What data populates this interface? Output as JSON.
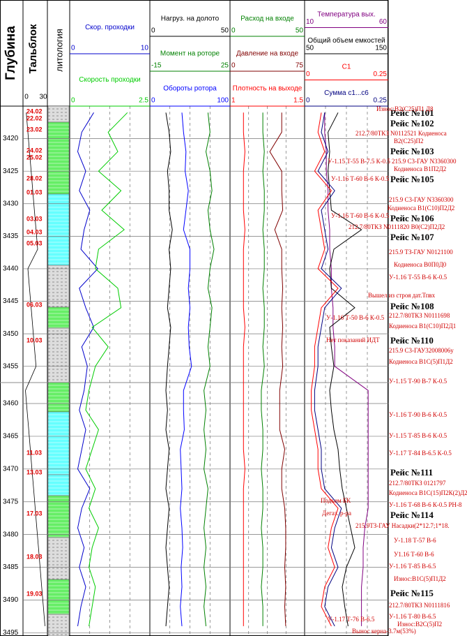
{
  "header": {
    "depth": "Глубина",
    "lithology": "литология"
  },
  "talblok": {
    "name": "Тальблок",
    "xlim": [
      0,
      30
    ],
    "color": "#000000",
    "values": [
      4,
      6,
      8,
      10,
      12,
      14,
      16,
      18,
      6,
      8,
      10,
      12,
      14,
      16,
      3,
      5,
      7,
      9,
      11,
      13,
      15,
      17,
      19,
      21,
      23,
      25,
      27
    ]
  },
  "depths": [
    3416,
    3419,
    3422,
    3425,
    3428,
    3431,
    3434,
    3437,
    3440,
    3443,
    3446,
    3449,
    3452,
    3455,
    3458,
    3461,
    3464,
    3467,
    3470,
    3473,
    3476,
    3479,
    3482,
    3485,
    3488,
    3491,
    3494
  ],
  "depth_panels": [
    {
      "ylim": [
        3415,
        3457.5
      ],
      "yticks": [
        3420,
        3425,
        3430,
        3435,
        3440,
        3445,
        3450,
        3455
      ]
    },
    {
      "ylim": [
        3456.8,
        3495.5
      ],
      "yticks": [
        3460,
        3465,
        3470,
        3475,
        3480,
        3485,
        3490,
        3495
      ]
    }
  ],
  "tracks": [
    [
      {
        "name": "Скор. проходки",
        "color": "#0000cc",
        "xlim": [
          0,
          10
        ],
        "values": [
          3,
          1.5,
          1,
          2,
          1.2,
          2.5,
          1.8,
          1.4,
          3.5,
          1.2,
          2,
          3,
          1.5,
          2.2,
          1.8,
          1.2,
          2,
          1.5,
          1,
          2.5,
          1.5,
          1,
          1.8,
          1.2,
          2,
          1.4,
          1
        ]
      },
      {
        "name": "Скорость проходки",
        "color": "#00cc00",
        "xlim": [
          0,
          2.5
        ],
        "values": [
          1.8,
          1.2,
          1.5,
          0.9,
          1.6,
          1.0,
          1.7,
          0.9,
          0.8,
          1.5,
          1.6,
          0.7,
          1.2,
          0.8,
          0.6,
          0.5,
          0.9,
          0.7,
          0.5,
          0.8,
          0.6,
          0.9,
          0.7,
          0.6,
          0.8,
          0.7,
          0.6
        ]
      }
    ],
    [
      {
        "name": "Нагруз. на долото",
        "color": "#000000",
        "xlim": [
          0,
          50
        ],
        "values": [
          10,
          12,
          13,
          11,
          12,
          12,
          14,
          12,
          13,
          12,
          11,
          13,
          12,
          11,
          10,
          11,
          10,
          12,
          11,
          10,
          12,
          11,
          10,
          11,
          12,
          11,
          10
        ]
      },
      {
        "name": "Момент на ротоpе",
        "color": "#008000",
        "xlim": [
          -15,
          25
        ],
        "values": [
          14,
          15,
          13,
          15,
          16,
          14,
          15,
          17,
          15,
          14,
          16,
          15,
          14,
          15,
          12,
          13,
          12,
          13,
          12,
          14,
          13,
          12,
          13,
          12,
          13,
          12,
          13
        ]
      },
      {
        "name": "Обороты ротора",
        "color": "#0000ff",
        "xlim": [
          0,
          100
        ],
        "values": [
          40,
          42,
          45,
          44,
          48,
          45,
          42,
          50,
          50,
          48,
          50,
          48,
          49,
          52,
          42,
          42,
          43,
          38,
          39,
          40,
          38,
          40,
          41,
          39,
          40,
          38,
          40
        ]
      }
    ],
    [
      {
        "name": "Расход на входе",
        "color": "#008000",
        "xlim": [
          0,
          50
        ],
        "values": [
          22,
          22,
          23,
          22,
          23,
          23,
          22,
          23,
          23,
          22,
          23,
          23,
          22,
          23,
          21,
          21,
          22,
          22,
          21,
          22,
          22,
          21,
          22,
          22,
          21,
          22,
          22
        ]
      },
      {
        "name": "Давление на входе",
        "color": "#800000",
        "xlim": [
          0,
          75
        ],
        "values": [
          52,
          52,
          40,
          52,
          52,
          53,
          45,
          52,
          52,
          53,
          52,
          53,
          52,
          53,
          50,
          50,
          50,
          55,
          52,
          52,
          55,
          56,
          56,
          55,
          56,
          55,
          56
        ]
      },
      {
        "name": "Плотность на выходе",
        "color": "#ff0000",
        "xlim": [
          1,
          1.5
        ],
        "values": [
          1.09,
          1.09,
          1.1,
          1.09,
          1.09,
          1.09,
          1.1,
          1.09,
          1.09,
          1.09,
          1.09,
          1.1,
          1.09,
          1.09,
          1.09,
          1.09,
          1.09,
          1.09,
          1.1,
          1.09,
          1.09,
          1.09,
          1.09,
          1.09,
          1.09,
          1.09,
          1.09
        ]
      }
    ],
    [
      {
        "name": "Температура вых.",
        "color": "#800080",
        "xlim": [
          10,
          60
        ],
        "values": [
          22,
          22,
          23,
          23,
          24,
          24,
          25,
          25,
          26,
          26,
          27,
          27,
          28,
          28,
          48,
          48,
          48,
          48,
          48,
          48,
          48,
          46,
          45,
          45,
          44,
          44,
          44
        ]
      },
      {
        "name": "Общий объем емкостей",
        "color": "#000000",
        "xlim": [
          50,
          150
        ],
        "values": [
          90,
          78,
          80,
          78,
          80,
          82,
          118,
          85,
          80,
          82,
          110,
          80,
          82,
          85,
          80,
          82,
          85,
          90,
          92,
          95,
          100,
          105,
          110,
          100,
          95,
          98,
          102
        ]
      },
      {
        "name": "C1",
        "color": "#ff0000",
        "xlim": [
          0,
          0.25
        ],
        "values": [
          0.05,
          0.04,
          0.06,
          0.03,
          0.08,
          0.04,
          0.05,
          0.06,
          0.04,
          0.1,
          0.05,
          0.04,
          0.03,
          0.03,
          0.02,
          0.02,
          0.03,
          0.04,
          0.04,
          0.05,
          0.1,
          0.08,
          0.07,
          0.09,
          0.06,
          0.05,
          0.08
        ]
      },
      {
        "name": "Сумма с1...с6",
        "color": "#000080",
        "xlim": [
          0,
          0.25
        ],
        "values": [
          0.06,
          0.05,
          0.07,
          0.04,
          0.09,
          0.05,
          0.06,
          0.07,
          0.05,
          0.11,
          0.06,
          0.05,
          0.04,
          0.04,
          0.03,
          0.03,
          0.04,
          0.05,
          0.05,
          0.06,
          0.11,
          0.09,
          0.08,
          0.1,
          0.07,
          0.06,
          0.09
        ]
      }
    ]
  ],
  "dates": [
    "24.02",
    "22.02",
    "23.02",
    "24.02",
    "25.02",
    "28.02",
    "01.03",
    "03.03",
    "04.03",
    "05.03",
    "06.03",
    "10.03",
    "11.03",
    "13.03",
    "17.03",
    "18.03",
    "19.03"
  ],
  "runs": [
    "Рейс №101",
    "Рейс №102",
    "Рейс №103",
    "Рейс №105",
    "Рейс №106",
    "Рейс №107",
    "Рейс №108",
    "Рейс №110",
    "Рейс №111",
    "Рейс №114",
    "Рейс №115"
  ],
  "notes": [
    "Износ:B2(C25)П1 Д8",
    "212.7/80ТКЗ N0112521 Кодиеноса",
    "B2(C25)П2",
    "215.9 C3-ГАУ N3360300",
    "Кодиеноса B1П2Д2",
    "215.9 C3-ГАУ N3360300",
    "Кодиеноса B1(C10)П2Д2",
    "212.7/80ТКЗ N0111820   B0(C2)П2Д2",
    "215.9 ТЗ-ГАУ N0121100",
    "Кодиеноса B0П0Д0",
    "У-1.16 Т-55 В-6 К-0.5",
    "212.7/80ТКЗ N0111698",
    "Кодиеноса B1(C10)П2Д1",
    "215.9 C3-ГАУ32008006у",
    "Кодиеноса B1C(5)П1Д2",
    "У-1.15 Т-90 В-7 К-0.5",
    "У-1.16 Т-90 В-6 К-0.5",
    "У-1.15 Т-85 В-6 К-0.5",
    "У-1.17 Т-84 В-6.5 К-0.5",
    "212.7/80ТКЗ 0121797",
    "Кодиеноса B1C(15)П2К(2)Д2",
    "У-1.16 Т-68 В-6 К-0.5 РН-8",
    "215.9ТЗ-ГАУ Насадки(2*12.7;1*18.",
    "У-1.18 Т-57 В-6",
    "У1.16 Т-60 В-6",
    "У-1.16 Т-85 В-6.5",
    "Износ:B1C(5)П1Д2",
    "212.7/80ТКЗ N0111816",
    "У-1.16 Т-80 В-6.5",
    "Износ:B2C(5)П2",
    "Вынос керна-3.7м(53%)"
  ],
  "track_notes": [
    "У-1.15 Т-55 В-7.5 К-0.5",
    "У-1.16 Т-60 В-6 К-0.5",
    "У-1.16 Т-60 В-6 К-0.5",
    "Вышел из строя дат.Тпвх",
    "У-1.16 Т-50 В-6 К-0.5",
    "Нет показаний ИДТ",
    "Подъем БК",
    "Дегаз. р-ра",
    "У-1.17 Т-76 В-6.5"
  ]
}
